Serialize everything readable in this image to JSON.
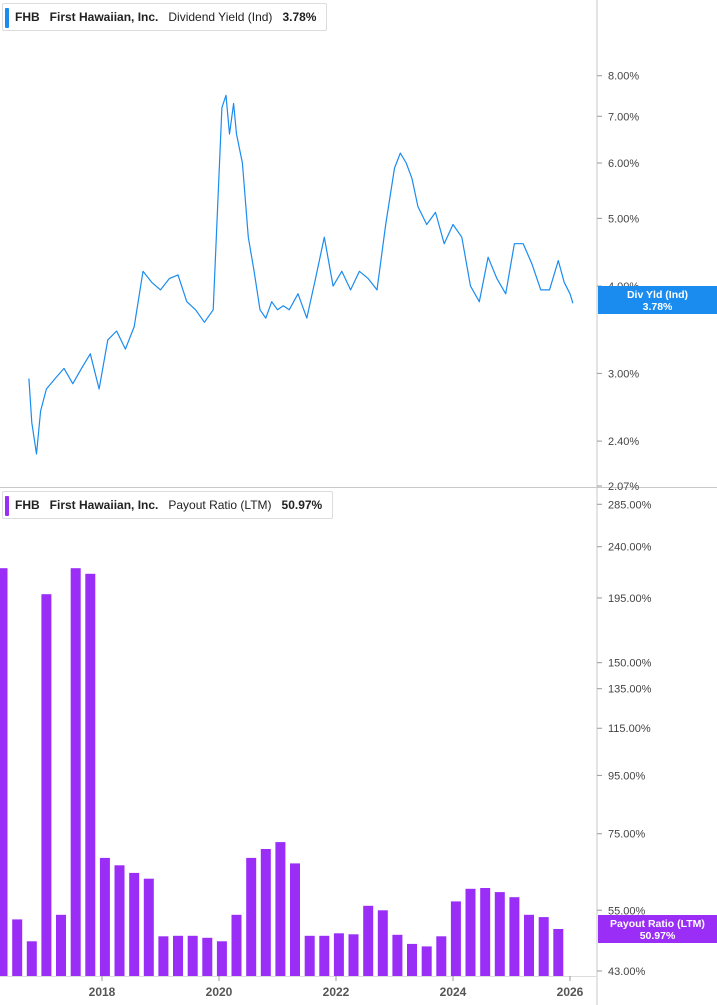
{
  "colors": {
    "yield": "#1a8cf0",
    "payout": "#9a2ef7",
    "grid": "#e8e8e8",
    "axis_text": "#444444"
  },
  "x_axis_labels": [
    "2018",
    "2020",
    "2022",
    "2024",
    "2026"
  ],
  "legends": {
    "yield": {
      "ticker": "FHB",
      "name": "First Hawaiian, Inc.",
      "metric": "Dividend Yield (Ind)",
      "value": "3.78%"
    },
    "payout": {
      "ticker": "FHB",
      "name": "First Hawaiian, Inc.",
      "metric": "Payout Ratio (LTM)",
      "value": "50.97%"
    }
  },
  "badges": {
    "yield": {
      "label": "Div Yld (Ind)",
      "value": "3.78%"
    },
    "payout": {
      "label": "Payout Ratio (LTM)",
      "value": "50.97%"
    }
  },
  "chart_data": [
    {
      "type": "line",
      "title": "Dividend Yield (Ind)",
      "scale": "log",
      "ylim": [
        2.07,
        9.0
      ],
      "y_ticks": [
        "8.00%",
        "7.00%",
        "6.00%",
        "5.00%",
        "4.00%",
        "3.00%",
        "2.40%",
        "2.07%"
      ],
      "xlim": [
        2016.3,
        2026.5
      ],
      "series": [
        {
          "name": "Div Yld (Ind)",
          "x": [
            2016.75,
            2016.8,
            2016.88,
            2016.95,
            2017.05,
            2017.2,
            2017.35,
            2017.5,
            2017.65,
            2017.8,
            2017.95,
            2018.1,
            2018.25,
            2018.4,
            2018.55,
            2018.7,
            2018.85,
            2019.0,
            2019.15,
            2019.3,
            2019.45,
            2019.6,
            2019.75,
            2019.9,
            2020.05,
            2020.12,
            2020.18,
            2020.25,
            2020.3,
            2020.4,
            2020.5,
            2020.6,
            2020.7,
            2020.8,
            2020.9,
            2021.0,
            2021.1,
            2021.2,
            2021.35,
            2021.5,
            2021.65,
            2021.8,
            2021.95,
            2022.1,
            2022.25,
            2022.4,
            2022.55,
            2022.7,
            2022.85,
            2023.0,
            2023.1,
            2023.2,
            2023.3,
            2023.4,
            2023.55,
            2023.7,
            2023.85,
            2024.0,
            2024.15,
            2024.3,
            2024.45,
            2024.6,
            2024.75,
            2024.9,
            2025.05,
            2025.2,
            2025.35,
            2025.5,
            2025.65,
            2025.8,
            2025.9,
            2026.0,
            2026.05
          ],
          "values": [
            2.95,
            2.55,
            2.3,
            2.65,
            2.85,
            2.95,
            3.05,
            2.9,
            3.05,
            3.2,
            2.85,
            3.35,
            3.45,
            3.25,
            3.5,
            4.2,
            4.05,
            3.95,
            4.1,
            4.15,
            3.8,
            3.7,
            3.55,
            3.7,
            7.2,
            7.5,
            6.6,
            7.3,
            6.6,
            6.0,
            4.7,
            4.2,
            3.7,
            3.6,
            3.8,
            3.7,
            3.75,
            3.7,
            3.9,
            3.6,
            4.1,
            4.7,
            4.0,
            4.2,
            3.95,
            4.2,
            4.1,
            3.95,
            4.9,
            5.9,
            6.2,
            6.0,
            5.7,
            5.2,
            4.9,
            5.1,
            4.6,
            4.9,
            4.7,
            4.0,
            3.8,
            4.4,
            4.1,
            3.9,
            4.6,
            4.6,
            4.3,
            3.95,
            3.95,
            4.35,
            4.05,
            3.9,
            3.78
          ]
        }
      ]
    },
    {
      "type": "bar",
      "title": "Payout Ratio (LTM)",
      "scale": "log",
      "ylim": [
        43,
        290
      ],
      "y_ticks": [
        "285.00%",
        "240.00%",
        "195.00%",
        "150.00%",
        "135.00%",
        "115.00%",
        "95.00%",
        "75.00%",
        "55.00%",
        "43.00%"
      ],
      "xlim": [
        2016.3,
        2026.5
      ],
      "series": [
        {
          "name": "Payout Ratio (LTM)",
          "x": [
            2016.3,
            2016.55,
            2016.8,
            2017.05,
            2017.3,
            2017.55,
            2017.8,
            2018.05,
            2018.3,
            2018.55,
            2018.8,
            2019.05,
            2019.3,
            2019.55,
            2019.8,
            2020.05,
            2020.3,
            2020.55,
            2020.8,
            2021.05,
            2021.3,
            2021.55,
            2021.8,
            2022.05,
            2022.3,
            2022.55,
            2022.8,
            2023.05,
            2023.3,
            2023.55,
            2023.8,
            2024.05,
            2024.3,
            2024.55,
            2024.8,
            2025.05,
            2025.3,
            2025.55,
            2025.8
          ],
          "values": [
            220,
            53,
            48.5,
            198,
            54,
            220,
            215,
            68,
            66,
            64,
            62.5,
            49.5,
            49.6,
            49.6,
            49.2,
            48.5,
            54,
            68,
            70.5,
            72.5,
            66.5,
            49.6,
            49.6,
            50.1,
            49.9,
            56,
            55,
            49.8,
            48,
            47.5,
            49.5,
            57,
            60,
            60.2,
            59.2,
            58,
            54,
            53.5,
            50.97
          ]
        }
      ]
    }
  ]
}
